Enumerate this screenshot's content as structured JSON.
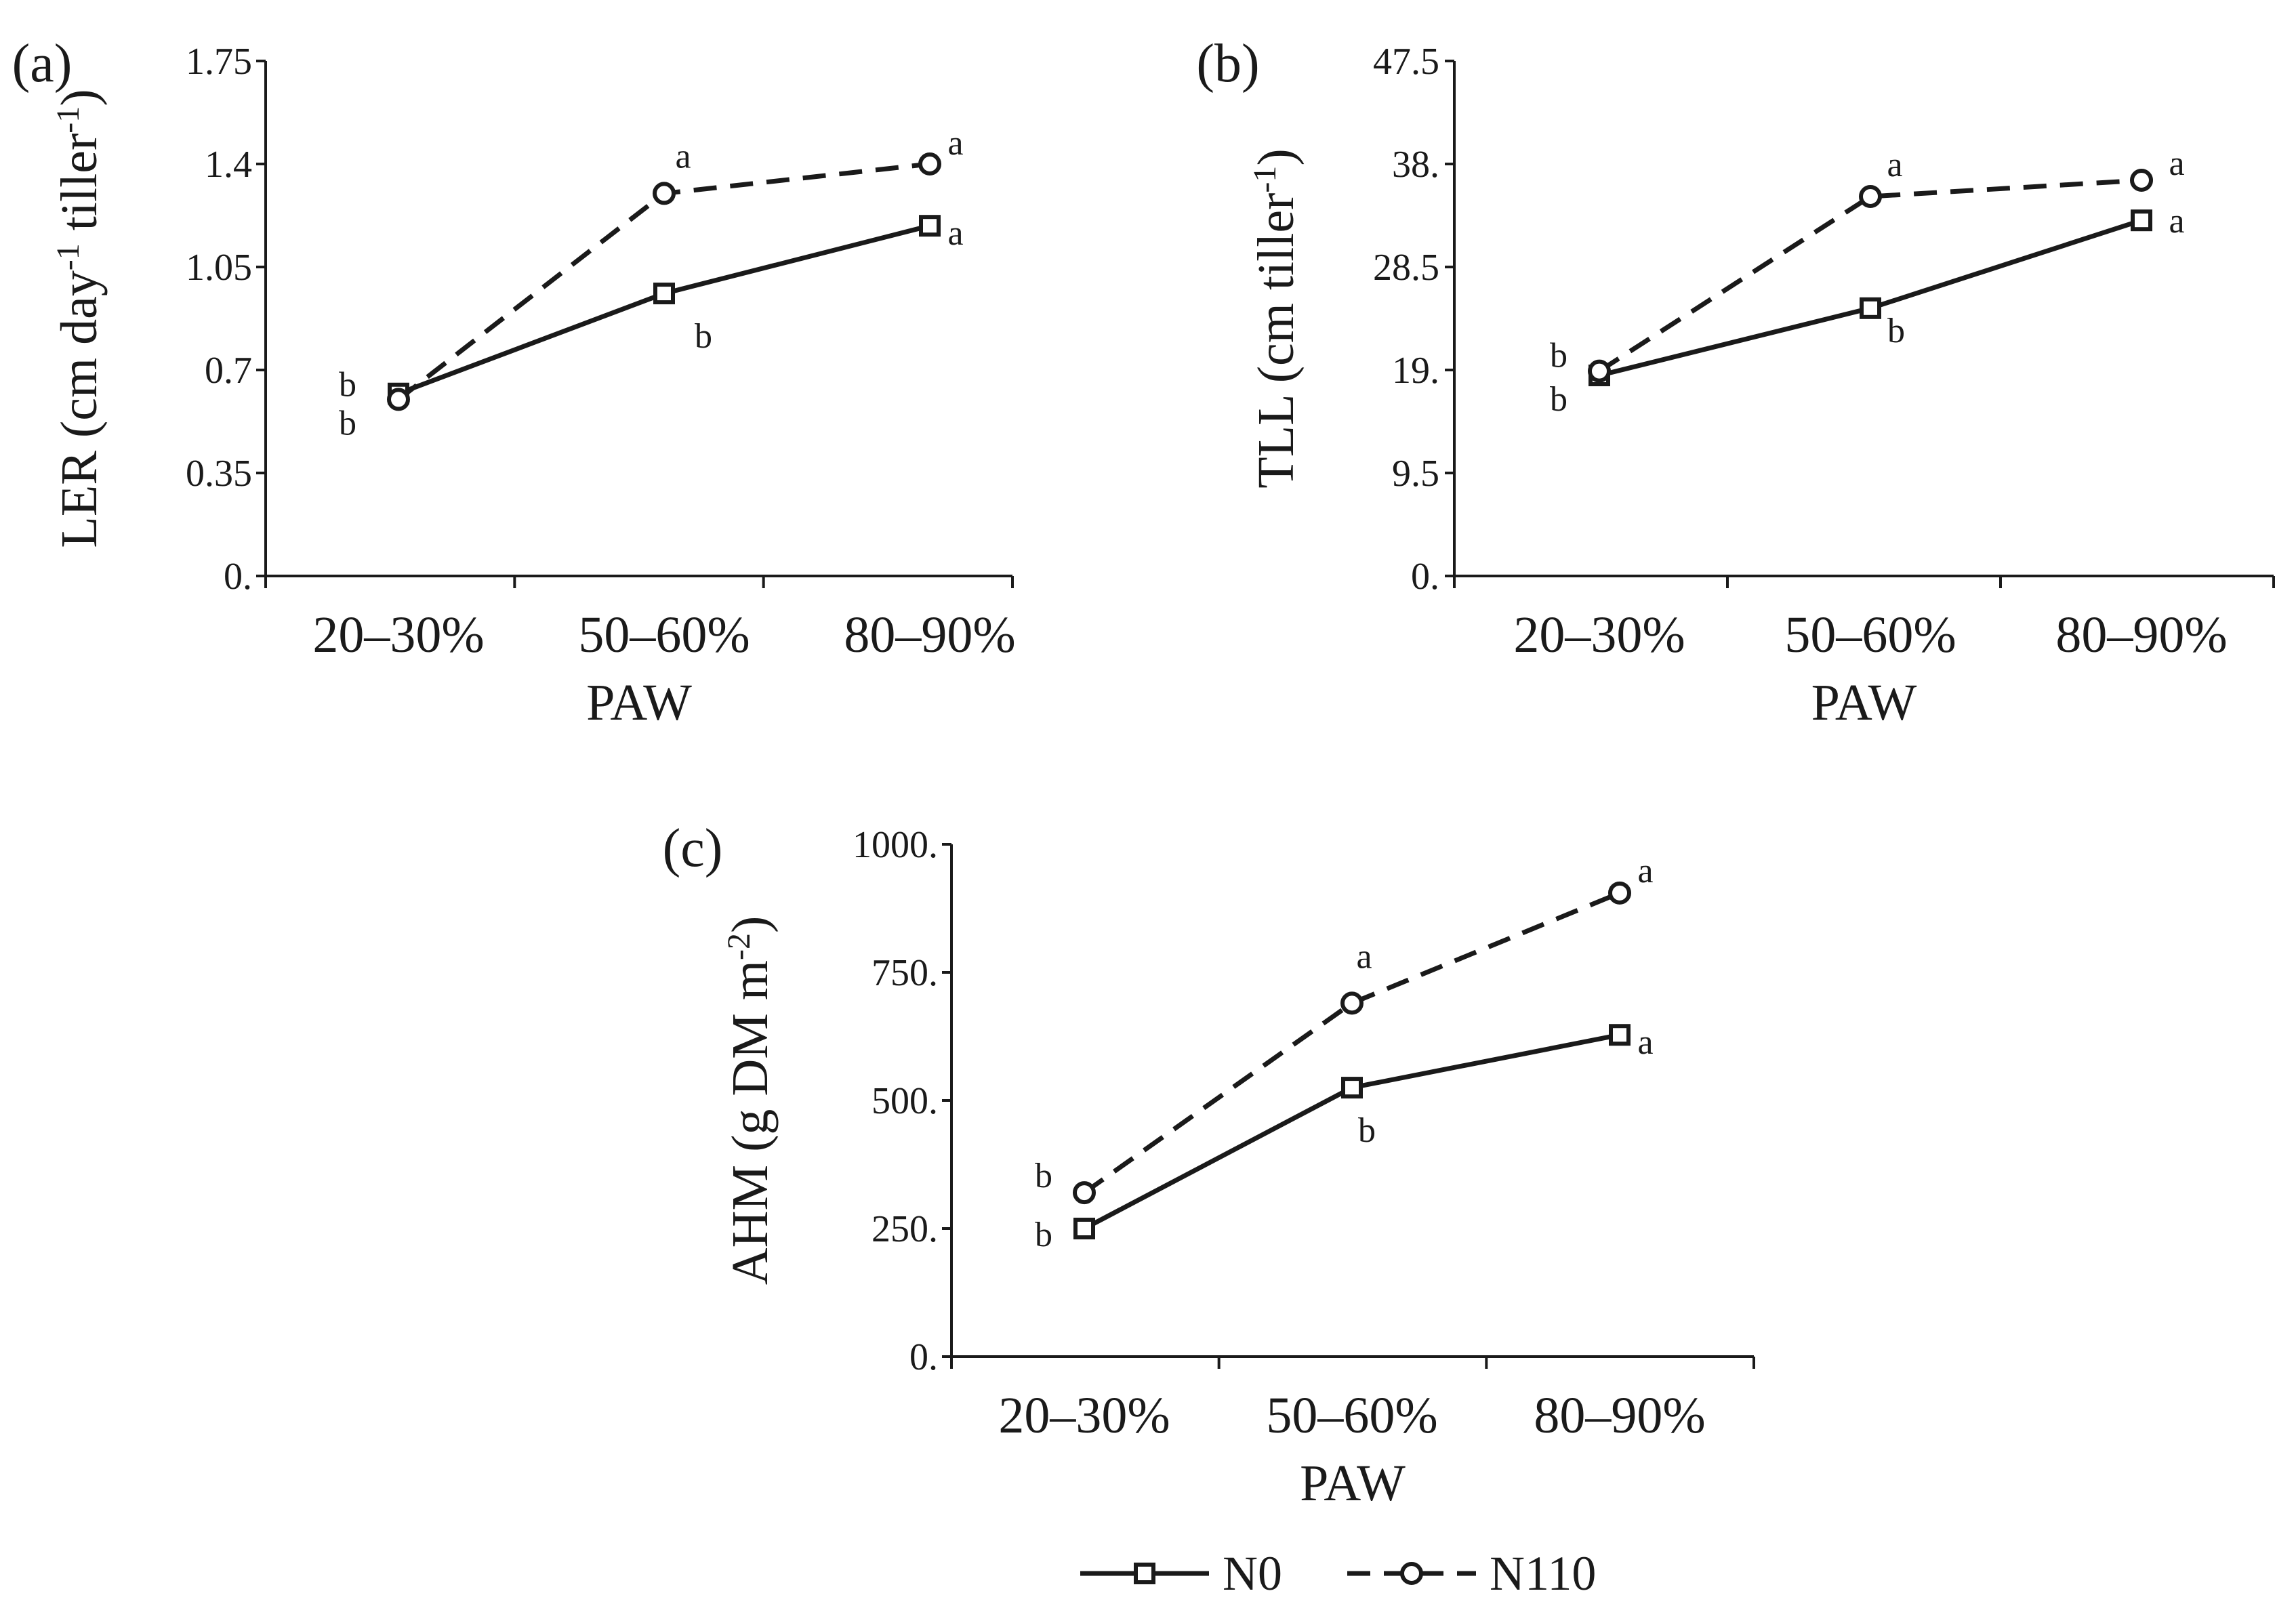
{
  "chart_data": [
    {
      "panel_label": "(a)",
      "type": "line",
      "categories": [
        "20–30%",
        "50–60%",
        "80–90%"
      ],
      "xlabel": "PAW",
      "ylabel_main": "LER (cm day",
      "ylabel_sup1": "-1",
      "ylabel_mid": " tiller",
      "ylabel_sup2": "-1",
      "ylabel_end": ")",
      "ylim": [
        0,
        1.75
      ],
      "yticks": [
        "0.",
        "0.35",
        "0.7",
        "1.05",
        "1.4",
        "1.75"
      ],
      "series": [
        {
          "name": "N0",
          "values": [
            0.62,
            0.96,
            1.19
          ],
          "letters": [
            "b",
            "b",
            "a"
          ]
        },
        {
          "name": "N110",
          "values": [
            0.6,
            1.3,
            1.4
          ],
          "letters": [
            "b",
            "a",
            "a"
          ]
        }
      ]
    },
    {
      "panel_label": "(b)",
      "type": "line",
      "categories": [
        "20–30%",
        "50–60%",
        "80–90%"
      ],
      "xlabel": "PAW",
      "ylabel_main": "TLL (cm tiller",
      "ylabel_sup1": "-1",
      "ylabel_mid": "",
      "ylabel_sup2": "",
      "ylabel_end": ")",
      "ylim": [
        0,
        47.5
      ],
      "yticks": [
        "0.",
        "9.5",
        "19.",
        "28.5",
        "38.",
        "47.5"
      ],
      "series": [
        {
          "name": "N0",
          "values": [
            18.5,
            24.7,
            32.8
          ],
          "letters": [
            "b",
            "b",
            "a"
          ]
        },
        {
          "name": "N110",
          "values": [
            18.9,
            35.0,
            36.5
          ],
          "letters": [
            "b",
            "a",
            "a"
          ]
        }
      ]
    },
    {
      "panel_label": "(c)",
      "type": "line",
      "categories": [
        "20–30%",
        "50–60%",
        "80–90%"
      ],
      "xlabel": "PAW",
      "ylabel_main": "AHM (g DM m",
      "ylabel_sup1": "-2",
      "ylabel_mid": "",
      "ylabel_sup2": "",
      "ylabel_end": ")",
      "ylim": [
        0,
        1000
      ],
      "yticks": [
        "0.",
        "250.",
        "500.",
        "750.",
        "1000."
      ],
      "series": [
        {
          "name": "N0",
          "values": [
            250,
            525,
            628
          ],
          "letters": [
            "b",
            "b",
            "a"
          ]
        },
        {
          "name": "N110",
          "values": [
            320,
            690,
            905
          ],
          "letters": [
            "b",
            "a",
            "a"
          ]
        }
      ]
    }
  ],
  "legend": {
    "items": [
      {
        "name": "N0",
        "style": "solid-square"
      },
      {
        "name": "N110",
        "style": "dashed-circle"
      }
    ]
  },
  "colors": {
    "line": "#1a1a1a",
    "axis": "#1a1a1a"
  }
}
